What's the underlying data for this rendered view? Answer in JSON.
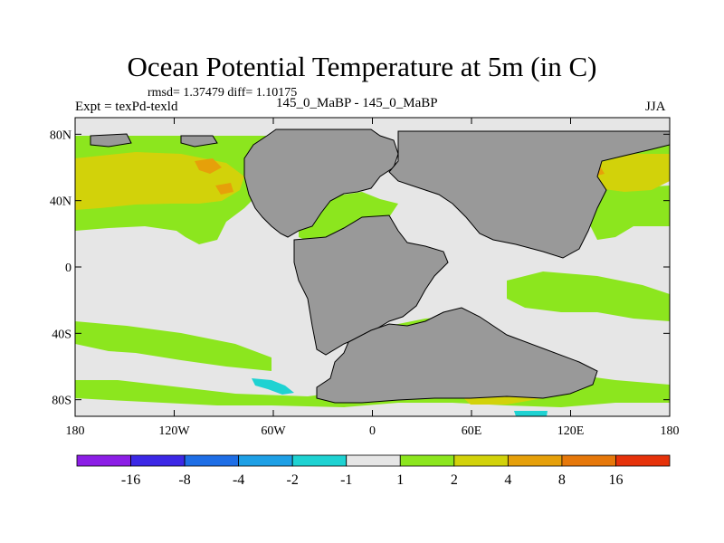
{
  "title": "Ocean Potential Temperature at 5m (in C)",
  "stats": "rmsd= 1.37479 diff= 1.10175",
  "experiment": "Expt = texPd-texld",
  "cases": "145_0_MaBP - 145_0_MaBP",
  "season": "JJA",
  "y_axis": {
    "ticks": [
      {
        "lat": 80,
        "label": "80N"
      },
      {
        "lat": 40,
        "label": "40N"
      },
      {
        "lat": 0,
        "label": "0"
      },
      {
        "lat": -40,
        "label": "40S"
      },
      {
        "lat": -80,
        "label": "80S"
      }
    ]
  },
  "x_axis": {
    "ticks": [
      {
        "lon": -180,
        "label": "180"
      },
      {
        "lon": -120,
        "label": "120W"
      },
      {
        "lon": -60,
        "label": "60W"
      },
      {
        "lon": 0,
        "label": "0"
      },
      {
        "lon": 60,
        "label": "60E"
      },
      {
        "lon": 120,
        "label": "120E"
      },
      {
        "lon": 180,
        "label": "180"
      }
    ]
  },
  "map_extent": {
    "lon": [
      -180,
      180
    ],
    "lat": [
      -90,
      90
    ]
  },
  "colorbar": {
    "colors": [
      "#8c1ee6",
      "#3c28e6",
      "#1e6ee6",
      "#1ea0e6",
      "#1ed2d2",
      "#e6e6e6",
      "#8ce61e",
      "#d2d20a",
      "#e6a00a",
      "#e6780a",
      "#e6320a"
    ],
    "labels": [
      "-16",
      "-8",
      "-4",
      "-2",
      "-1",
      "1",
      "2",
      "4",
      "8",
      "16"
    ]
  },
  "colors": {
    "land": "#999999",
    "neutral": "#e6e6e6",
    "warm_2": "#8ce61e",
    "warm_4": "#d2d20a",
    "warm_8": "#e6a00a",
    "warm_16": "#e6780a",
    "cool": "#1ed2d2"
  }
}
